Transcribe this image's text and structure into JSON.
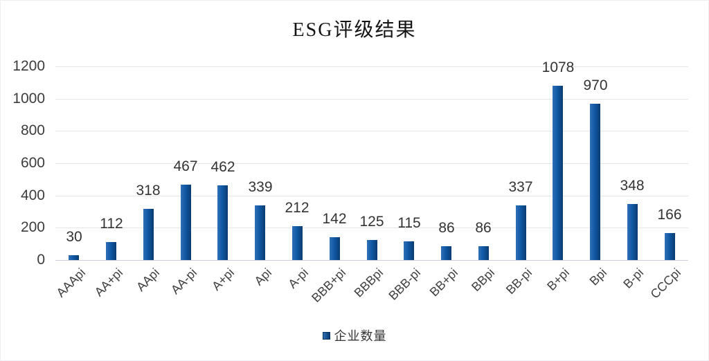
{
  "chart_data": {
    "type": "bar",
    "title": "ESG评级结果",
    "categories": [
      "AAApi",
      "AA+pi",
      "AApi",
      "AA-pi",
      "A+pi",
      "Api",
      "A-pi",
      "BBB+pi",
      "BBBpi",
      "BBB-pi",
      "BB+pi",
      "BBpi",
      "BB-pi",
      "B+pi",
      "Bpi",
      "B-pi",
      "CCCpi"
    ],
    "series": [
      {
        "name": "企业数量",
        "values": [
          30,
          112,
          318,
          467,
          462,
          339,
          212,
          142,
          125,
          115,
          86,
          86,
          337,
          1078,
          970,
          348,
          166
        ]
      }
    ],
    "xlabel": "",
    "ylabel": "",
    "ylim": [
      0,
      1200
    ],
    "y_ticks": [
      0,
      200,
      400,
      600,
      800,
      1000,
      1200
    ],
    "grid": true,
    "data_labels": true,
    "legend_position": "bottom",
    "colors": {
      "bar_main": "#1158a5",
      "bar_gradient_left": "#2f70b6",
      "bar_gradient_right": "#0a3c72",
      "gridline": "#e4e6ec",
      "axis_line": "#cdd1da",
      "text": "#3c3c3c"
    }
  }
}
